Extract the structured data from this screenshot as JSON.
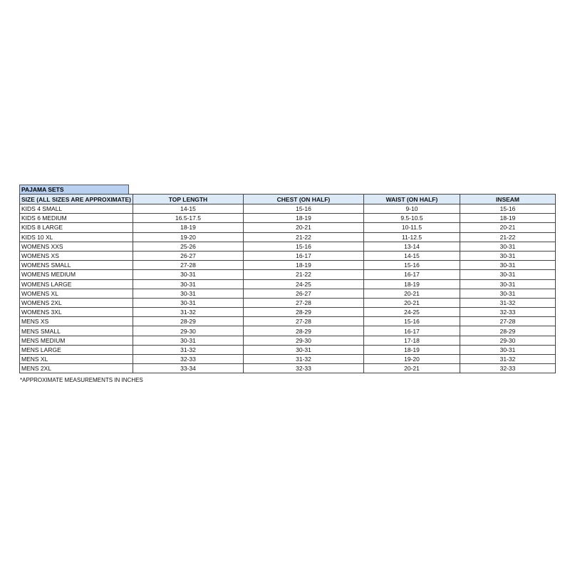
{
  "title": "PAJAMA SETS",
  "headers": [
    "SIZE  (ALL SIZES ARE APPROXIMATE)",
    "TOP LENGTH",
    "CHEST (ON HALF)",
    "WAIST (ON HALF)",
    "INSEAM"
  ],
  "rows": [
    [
      "KIDS 4 SMALL",
      "14-15",
      "15-16",
      "9-10",
      "15-16"
    ],
    [
      "KIDS 6 MEDIUM",
      "16.5-17.5",
      "18-19",
      "9.5-10.5",
      "18-19"
    ],
    [
      "KIDS 8 LARGE",
      "18-19",
      "20-21",
      "10-11.5",
      "20-21"
    ],
    [
      "KIDS 10 XL",
      "19-20",
      "21-22",
      "11-12.5",
      "21-22"
    ],
    [
      "WOMENS XXS",
      "25-26",
      "15-16",
      "13-14",
      "30-31"
    ],
    [
      "WOMENS XS",
      "26-27",
      "16-17",
      "14-15",
      "30-31"
    ],
    [
      "WOMENS SMALL",
      "27-28",
      "18-19",
      "15-16",
      "30-31"
    ],
    [
      "WOMENS MEDIUM",
      "30-31",
      "21-22",
      "16-17",
      "30-31"
    ],
    [
      "WOMENS LARGE",
      "30-31",
      "24-25",
      "18-19",
      "30-31"
    ],
    [
      "WOMENS XL",
      "30-31",
      "26-27",
      "20-21",
      "30-31"
    ],
    [
      "WOMENS 2XL",
      "30-31",
      "27-28",
      "20-21",
      "31-32"
    ],
    [
      "WOMENS 3XL",
      "31-32",
      "28-29",
      "24-25",
      "32-33"
    ],
    [
      "MENS XS",
      "28-29",
      "27-28",
      "15-16",
      "27-28"
    ],
    [
      "MENS SMALL",
      "29-30",
      "28-29",
      "16-17",
      "28-29"
    ],
    [
      "MENS MEDIUM",
      "30-31",
      "29-30",
      "17-18",
      "29-30"
    ],
    [
      "MENS LARGE",
      "31-32",
      "30-31",
      "18-19",
      "30-31"
    ],
    [
      "MENS XL",
      "32-33",
      "31-32",
      "19-20",
      "31-32"
    ],
    [
      "MENS 2XL",
      "33-34",
      "32-33",
      "20-21",
      "32-33"
    ]
  ],
  "footnote": "*APPROXIMATE MEASUREMENTS IN INCHES",
  "colors": {
    "title_bg": "#b9d1f0",
    "header_bg": "#dce9f7"
  }
}
